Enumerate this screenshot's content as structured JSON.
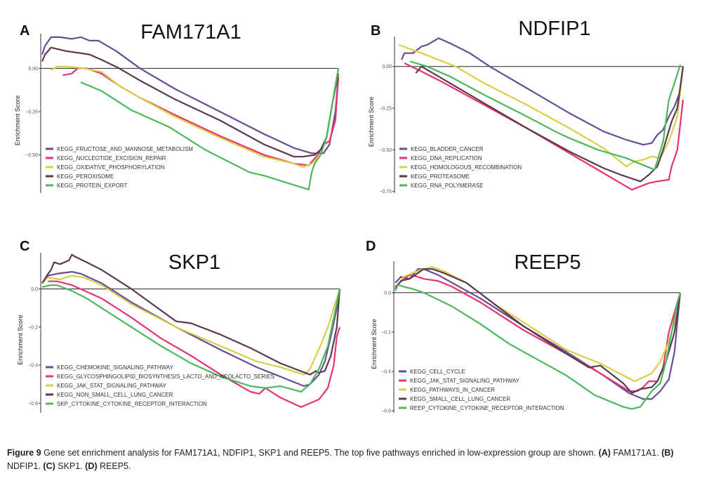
{
  "figure": {
    "caption_label": "Figure 9",
    "caption_text": " Gene set enrichment analysis for FAM171A1, NDFIP1, SKP1 and REEP5. The top five pathways enriched in low-expression group are shown. ",
    "caption_parts": [
      {
        "bold": "(A)",
        "text": " FAM171A1. "
      },
      {
        "bold": "(B)",
        "text": " NDFIP1. "
      },
      {
        "bold": "(C)",
        "text": " SKP1. "
      },
      {
        "bold": "(D)",
        "text": " REEP5."
      }
    ]
  },
  "colors": {
    "purple": "#6a4c93",
    "pink": "#e8336d",
    "yellow": "#d9cf45",
    "darkplum": "#5a3a50",
    "green": "#4cb85c"
  },
  "chart_data": [
    {
      "type": "line",
      "panel_label": "A",
      "title": "FAM171A1",
      "xlabel": "",
      "ylabel": "Enrichment Score",
      "ylim": [
        -0.72,
        0.2
      ],
      "yticks": [
        0.0,
        -0.25,
        -0.5
      ],
      "ytick_labels": [
        "0.00",
        "-0.25",
        "-0.50"
      ],
      "xlim": [
        0,
        1
      ],
      "zero_line": true,
      "legend_position": "bottom-left",
      "series": [
        {
          "name": "KEGG_FRUCTOSE_AND_MANNOSE_METABOLISM",
          "color": "#6a4c93",
          "x": [
            0.0,
            0.01,
            0.03,
            0.06,
            0.1,
            0.13,
            0.16,
            0.19,
            0.25,
            0.33,
            0.45,
            0.6,
            0.75,
            0.85,
            0.91,
            0.95,
            0.97,
            0.99,
            1.0
          ],
          "y": [
            0.08,
            0.13,
            0.18,
            0.18,
            0.17,
            0.18,
            0.16,
            0.16,
            0.1,
            0.0,
            -0.12,
            -0.25,
            -0.38,
            -0.46,
            -0.49,
            -0.49,
            -0.44,
            -0.25,
            -0.05
          ]
        },
        {
          "name": "KEGG_NUCLEOTIDE_EXCISION_REPAIR",
          "color": "#e8336d",
          "x": [
            0.07,
            0.1,
            0.12,
            0.15,
            0.2,
            0.26,
            0.33,
            0.45,
            0.6,
            0.75,
            0.85,
            0.9,
            0.93,
            0.95,
            0.97,
            0.99,
            1.0
          ],
          "y": [
            -0.04,
            -0.03,
            0.0,
            0.0,
            -0.03,
            -0.1,
            -0.17,
            -0.27,
            -0.39,
            -0.5,
            -0.55,
            -0.56,
            -0.5,
            -0.44,
            -0.42,
            -0.3,
            -0.05
          ]
        },
        {
          "name": "KEGG_OXIDATIVE_PHOSPHORYLATION",
          "color": "#d9cf45",
          "x": [
            0.03,
            0.05,
            0.09,
            0.14,
            0.2,
            0.26,
            0.33,
            0.45,
            0.6,
            0.75,
            0.85,
            0.88,
            0.91,
            0.94,
            0.96,
            0.98,
            1.0
          ],
          "y": [
            -0.01,
            0.01,
            0.01,
            0.0,
            -0.02,
            -0.1,
            -0.17,
            -0.28,
            -0.4,
            -0.51,
            -0.55,
            -0.57,
            -0.55,
            -0.5,
            -0.4,
            -0.2,
            0.0
          ]
        },
        {
          "name": "KEGG_PEROXISOME",
          "color": "#5a3a50",
          "x": [
            0.0,
            0.01,
            0.03,
            0.08,
            0.12,
            0.16,
            0.2,
            0.26,
            0.33,
            0.45,
            0.6,
            0.75,
            0.85,
            0.88,
            0.92,
            0.94,
            0.96,
            0.98,
            1.0
          ],
          "y": [
            0.04,
            0.08,
            0.12,
            0.1,
            0.09,
            0.08,
            0.05,
            0.0,
            -0.07,
            -0.18,
            -0.3,
            -0.44,
            -0.51,
            -0.51,
            -0.5,
            -0.47,
            -0.4,
            -0.2,
            -0.03
          ]
        },
        {
          "name": "KEGG_PROTEIN_EXPORT",
          "color": "#4cb85c",
          "x": [
            0.13,
            0.2,
            0.3,
            0.43,
            0.55,
            0.7,
            0.75,
            0.9,
            0.91,
            0.92,
            0.94,
            0.96,
            0.98,
            1.0
          ],
          "y": [
            -0.08,
            -0.13,
            -0.24,
            -0.34,
            -0.47,
            -0.6,
            -0.62,
            -0.7,
            -0.6,
            -0.55,
            -0.5,
            -0.4,
            -0.2,
            0.0
          ]
        }
      ]
    },
    {
      "type": "line",
      "panel_label": "B",
      "title": "NDFIP1",
      "xlabel": "",
      "ylabel": "Enrichment Score",
      "ylim": [
        -0.76,
        0.18
      ],
      "yticks": [
        0.0,
        -0.25,
        -0.5,
        -0.75
      ],
      "ytick_labels": [
        "0.00",
        "-0.25",
        "-0.50",
        "-0.75"
      ],
      "xlim": [
        0,
        1
      ],
      "zero_line": true,
      "legend_position": "bottom-left",
      "series": [
        {
          "name": "KEGG_BLADDER_CANCER",
          "color": "#6a4c93",
          "x": [
            0.01,
            0.02,
            0.05,
            0.08,
            0.1,
            0.14,
            0.18,
            0.25,
            0.32,
            0.45,
            0.6,
            0.72,
            0.8,
            0.86,
            0.89,
            0.91,
            0.93,
            0.95,
            0.97,
            0.99,
            1.0
          ],
          "y": [
            0.04,
            0.08,
            0.08,
            0.12,
            0.13,
            0.17,
            0.14,
            0.08,
            0.0,
            -0.13,
            -0.28,
            -0.39,
            -0.44,
            -0.47,
            -0.46,
            -0.41,
            -0.38,
            -0.3,
            -0.24,
            -0.15,
            0.0
          ]
        },
        {
          "name": "KEGG_DNA_REPLICATION",
          "color": "#e8336d",
          "x": [
            0.02,
            0.08,
            0.15,
            0.3,
            0.45,
            0.6,
            0.72,
            0.82,
            0.85,
            0.88,
            0.91,
            0.95,
            0.96,
            0.98,
            0.99,
            1.0
          ],
          "y": [
            0.02,
            -0.03,
            -0.09,
            -0.23,
            -0.37,
            -0.52,
            -0.64,
            -0.74,
            -0.72,
            -0.7,
            -0.69,
            -0.68,
            -0.6,
            -0.5,
            -0.35,
            -0.2
          ]
        },
        {
          "name": "KEGG_HOMOLOGOUS_RECOMBINATION",
          "color": "#d9cf45",
          "x": [
            0.0,
            0.08,
            0.2,
            0.3,
            0.45,
            0.6,
            0.72,
            0.8,
            0.83,
            0.86,
            0.89,
            0.92,
            0.95,
            0.98,
            1.0
          ],
          "y": [
            0.13,
            0.08,
            0.0,
            -0.1,
            -0.23,
            -0.37,
            -0.49,
            -0.6,
            -0.57,
            -0.56,
            -0.54,
            -0.55,
            -0.45,
            -0.3,
            0.0
          ]
        },
        {
          "name": "KEGG_PROTEASOME",
          "color": "#5a3a50",
          "x": [
            0.06,
            0.08,
            0.15,
            0.3,
            0.45,
            0.6,
            0.72,
            0.78,
            0.85,
            0.88,
            0.91,
            0.93,
            0.96,
            0.98,
            1.0
          ],
          "y": [
            -0.04,
            0.0,
            -0.07,
            -0.22,
            -0.37,
            -0.51,
            -0.61,
            -0.65,
            -0.69,
            -0.65,
            -0.6,
            -0.5,
            -0.33,
            -0.25,
            0.0
          ]
        },
        {
          "name": "KEGG_RNA_POLYMERASE",
          "color": "#4cb85c",
          "x": [
            0.04,
            0.1,
            0.18,
            0.3,
            0.45,
            0.55,
            0.6,
            0.7,
            0.8,
            0.9,
            0.93,
            0.95,
            0.97,
            0.99
          ],
          "y": [
            0.03,
            0.0,
            -0.06,
            -0.17,
            -0.3,
            -0.39,
            -0.43,
            -0.5,
            -0.55,
            -0.62,
            -0.45,
            -0.2,
            -0.1,
            0.01
          ]
        }
      ]
    },
    {
      "type": "line",
      "panel_label": "C",
      "title": "SKP1",
      "xlabel": "",
      "ylabel": "Enrichment Score",
      "ylim": [
        -0.65,
        0.19
      ],
      "yticks": [
        0.0,
        -0.2,
        -0.4,
        -0.6
      ],
      "ytick_labels": [
        "0.0",
        "-0.2",
        "-0.4",
        "-0.6"
      ],
      "xlim": [
        0,
        1
      ],
      "zero_line": true,
      "legend_position": "bottom-left",
      "series": [
        {
          "name": "KEGG_CHEMOKINE_SIGNALING_PATHWAY",
          "color": "#6a4c93",
          "x": [
            0.0,
            0.02,
            0.05,
            0.1,
            0.13,
            0.2,
            0.3,
            0.45,
            0.6,
            0.72,
            0.8,
            0.88,
            0.9,
            0.93,
            0.95,
            0.97,
            0.99,
            1.0
          ],
          "y": [
            0.03,
            0.07,
            0.08,
            0.09,
            0.08,
            0.03,
            -0.07,
            -0.2,
            -0.32,
            -0.41,
            -0.46,
            -0.51,
            -0.5,
            -0.45,
            -0.38,
            -0.25,
            -0.1,
            0.0
          ]
        },
        {
          "name": "KEGG_GLYCOSPHINGOLIPID_BIOSYNTHESIS_LACTO_AND_NEOLACTO_SERIES",
          "color": "#e8336d",
          "x": [
            0.02,
            0.05,
            0.1,
            0.2,
            0.3,
            0.4,
            0.5,
            0.6,
            0.7,
            0.73,
            0.75,
            0.8,
            0.87,
            0.9,
            0.93,
            0.96,
            0.98,
            0.99,
            1.0
          ],
          "y": [
            0.04,
            0.04,
            0.02,
            -0.05,
            -0.15,
            -0.26,
            -0.35,
            -0.45,
            -0.54,
            -0.55,
            -0.52,
            -0.57,
            -0.62,
            -0.6,
            -0.58,
            -0.52,
            -0.4,
            -0.25,
            -0.2
          ]
        },
        {
          "name": "KEGG_JAK_STAT_SIGNALING_PATHWAY",
          "color": "#d9cf45",
          "x": [
            0.0,
            0.02,
            0.06,
            0.1,
            0.14,
            0.2,
            0.3,
            0.45,
            0.6,
            0.72,
            0.8,
            0.88,
            0.9,
            0.92,
            0.94,
            0.96,
            0.98,
            1.0
          ],
          "y": [
            0.03,
            0.06,
            0.05,
            0.07,
            0.06,
            0.02,
            -0.08,
            -0.2,
            -0.3,
            -0.38,
            -0.41,
            -0.45,
            -0.42,
            -0.35,
            -0.28,
            -0.2,
            -0.1,
            0.0
          ]
        },
        {
          "name": "KEGG_NON_SMALL_CELL_LUNG_CANCER",
          "color": "#5a3a50",
          "x": [
            0.0,
            0.02,
            0.03,
            0.04,
            0.06,
            0.09,
            0.1,
            0.11,
            0.15,
            0.2,
            0.3,
            0.45,
            0.5,
            0.6,
            0.7,
            0.8,
            0.9,
            0.92,
            0.93,
            0.95,
            0.97,
            0.99,
            1.0
          ],
          "y": [
            0.03,
            0.08,
            0.1,
            0.14,
            0.13,
            0.15,
            0.18,
            0.17,
            0.14,
            0.1,
            0.0,
            -0.17,
            -0.18,
            -0.24,
            -0.31,
            -0.39,
            -0.45,
            -0.43,
            -0.44,
            -0.43,
            -0.35,
            -0.2,
            0.0
          ]
        },
        {
          "name": "SKP_CYTOKINE_CYTOKINE_RECEPTOR_INTERACTION",
          "color": "#4cb85c",
          "x": [
            0.0,
            0.03,
            0.05,
            0.1,
            0.15,
            0.2,
            0.3,
            0.4,
            0.5,
            0.6,
            0.7,
            0.75,
            0.8,
            0.87,
            0.9,
            0.93,
            0.96,
            0.98,
            1.0
          ],
          "y": [
            0.01,
            0.02,
            0.02,
            -0.01,
            -0.05,
            -0.1,
            -0.2,
            -0.3,
            -0.39,
            -0.46,
            -0.51,
            -0.52,
            -0.51,
            -0.54,
            -0.5,
            -0.42,
            -0.3,
            -0.15,
            0.0
          ]
        }
      ]
    },
    {
      "type": "line",
      "panel_label": "D",
      "title": "REEP5",
      "xlabel": "",
      "ylabel": "Enrichment Score",
      "ylim": [
        -0.61,
        0.16
      ],
      "yticks": [
        0.0,
        -0.2,
        -0.4,
        -0.6
      ],
      "ytick_labels": [
        "0.0",
        "-0.2",
        "-0.4",
        "-0.6"
      ],
      "xlim": [
        0,
        1
      ],
      "zero_line": true,
      "legend_position": "bottom-left",
      "series": [
        {
          "name": "KEGG_CELL_CYCLE",
          "color": "#6a4c93",
          "x": [
            0.0,
            0.02,
            0.05,
            0.08,
            0.1,
            0.15,
            0.2,
            0.3,
            0.45,
            0.6,
            0.72,
            0.82,
            0.87,
            0.9,
            0.93,
            0.96,
            0.98,
            0.99,
            1.0
          ],
          "y": [
            0.05,
            0.08,
            0.07,
            0.12,
            0.12,
            0.09,
            0.05,
            -0.03,
            -0.17,
            -0.3,
            -0.41,
            -0.51,
            -0.54,
            -0.54,
            -0.5,
            -0.44,
            -0.3,
            -0.15,
            0.0
          ]
        },
        {
          "name": "KEGG_JAK_STAT_SIGNALING_PATHWAY",
          "color": "#e8336d",
          "x": [
            0.0,
            0.03,
            0.05,
            0.08,
            0.1,
            0.15,
            0.2,
            0.3,
            0.45,
            0.6,
            0.72,
            0.82,
            0.85,
            0.87,
            0.89,
            0.92,
            0.94,
            0.96,
            0.98,
            1.0
          ],
          "y": [
            0.03,
            0.07,
            0.09,
            0.08,
            0.07,
            0.06,
            0.03,
            -0.05,
            -0.19,
            -0.31,
            -0.41,
            -0.5,
            -0.5,
            -0.48,
            -0.45,
            -0.45,
            -0.38,
            -0.2,
            -0.1,
            0.0
          ]
        },
        {
          "name": "KEGG_PATHWAYS_IN_CANCER",
          "color": "#d9cf45",
          "x": [
            0.0,
            0.03,
            0.06,
            0.1,
            0.13,
            0.17,
            0.25,
            0.35,
            0.45,
            0.6,
            0.72,
            0.84,
            0.87,
            0.9,
            0.93,
            0.96,
            0.98,
            1.0
          ],
          "y": [
            0.02,
            0.08,
            0.1,
            0.12,
            0.13,
            0.11,
            0.05,
            -0.06,
            -0.15,
            -0.29,
            -0.36,
            -0.45,
            -0.43,
            -0.41,
            -0.35,
            -0.25,
            -0.15,
            0.0
          ]
        },
        {
          "name": "KEGG_SMALL_CELL_LUNG_CANCER",
          "color": "#5a3a50",
          "x": [
            0.0,
            0.02,
            0.05,
            0.08,
            0.1,
            0.13,
            0.17,
            0.25,
            0.35,
            0.45,
            0.6,
            0.68,
            0.72,
            0.8,
            0.83,
            0.86,
            0.9,
            0.92,
            0.95,
            0.98,
            1.0
          ],
          "y": [
            0.02,
            0.06,
            0.07,
            0.1,
            0.12,
            0.12,
            0.1,
            0.05,
            -0.06,
            -0.17,
            -0.31,
            -0.38,
            -0.37,
            -0.46,
            -0.51,
            -0.49,
            -0.48,
            -0.45,
            -0.35,
            -0.2,
            0.0
          ]
        },
        {
          "name": "REEP_CYTOKINE_CYTOKINE_RECEPTOR_INTERACTION",
          "color": "#4cb85c",
          "x": [
            0.0,
            0.01,
            0.03,
            0.06,
            0.1,
            0.2,
            0.3,
            0.4,
            0.5,
            0.6,
            0.7,
            0.8,
            0.83,
            0.86,
            0.88,
            0.9,
            0.93,
            0.95,
            0.97,
            0.99,
            1.0
          ],
          "y": [
            0.01,
            0.04,
            0.03,
            0.02,
            0.0,
            -0.07,
            -0.16,
            -0.26,
            -0.34,
            -0.42,
            -0.52,
            -0.58,
            -0.59,
            -0.58,
            -0.54,
            -0.5,
            -0.46,
            -0.35,
            -0.2,
            -0.05,
            0.0
          ]
        }
      ]
    }
  ]
}
